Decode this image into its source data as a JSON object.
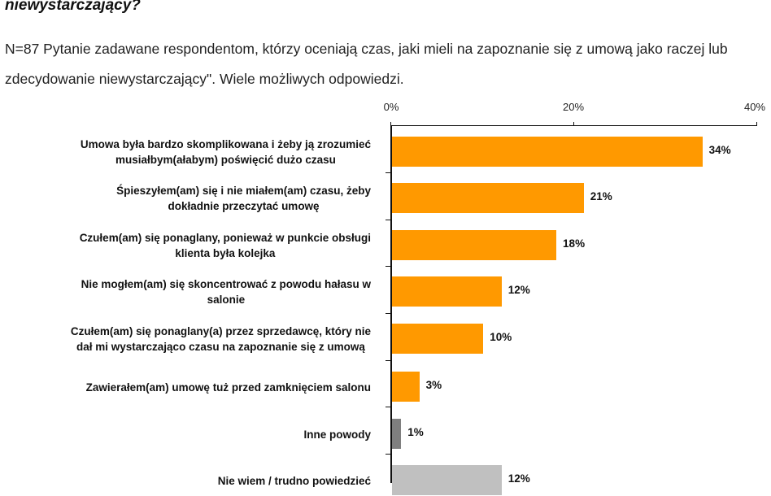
{
  "header": {
    "question_title_fragment": "niewystarczający?",
    "subtitle": "N=87 Pytanie zadawane respondentom, którzy oceniają czas, jaki mieli na zapoznanie się z umową jako raczej lub zdecydowanie niewystarczający\". Wiele możliwych odpowiedzi."
  },
  "colors": {
    "primary_bar": "#FF9900",
    "other_bar": "#7F7F7F",
    "dont_know_bar": "#C0C0C0",
    "axis": "#111111"
  },
  "axis": {
    "ticks": [
      "0%",
      "20%",
      "40%"
    ]
  },
  "chart_data": {
    "type": "bar",
    "orientation": "horizontal",
    "title": "niewystarczający?",
    "subtitle": "N=87 Pytanie zadawane respondentom, którzy oceniają czas, jaki mieli na zapoznanie się z umową jako raczej lub zdecydowanie niewystarczający\". Wiele możliwych odpowiedzi.",
    "xlabel": "",
    "ylabel": "",
    "xlim": [
      0,
      40
    ],
    "x_ticks": [
      "0%",
      "20%",
      "40%"
    ],
    "x_axis_position": "top",
    "grid": false,
    "legend": null,
    "categories": [
      "Umowa była bardzo skomplikowana i żeby ją zrozumieć musiałbym(ałabym) poświęcić dużo czasu",
      "Śpieszyłem(am) się i nie miałem(am) czasu, żeby dokładnie przeczytać umowę",
      "Czułem(am) się ponaglany, ponieważ w punkcie obsługi klienta była kolejka",
      "Nie mogłem(am) się skoncentrować z powodu hałasu w salonie",
      "Czułem(am) się ponaglany(a) przez sprzedawcę, który nie dał mi wystarczająco czasu na zapoznanie się z umową",
      "Zawierałem(am) umowę tuż przed zamknięciem salonu",
      "Inne powody",
      "Nie wiem / trudno powiedzieć"
    ],
    "values": [
      34,
      21,
      18,
      12,
      10,
      3,
      1,
      12
    ],
    "value_labels": [
      "34%",
      "21%",
      "18%",
      "12%",
      "10%",
      "3%",
      "1%",
      "12%"
    ],
    "bar_colors": [
      "#FF9900",
      "#FF9900",
      "#FF9900",
      "#FF9900",
      "#FF9900",
      "#FF9900",
      "#7F7F7F",
      "#C0C0C0"
    ]
  },
  "rows": [
    {
      "line1": "Umowa była bardzo skomplikowana i żeby ją zrozumieć",
      "line2": "musiałbym(ałabym) poświęcić dużo czasu",
      "label": "34%"
    },
    {
      "line1": "Śpieszyłem(am) się i nie miałem(am) czasu, żeby",
      "line2": "dokładnie przeczytać umowę",
      "label": "21%"
    },
    {
      "line1": "Czułem(am) się ponaglany, ponieważ w punkcie obsługi",
      "line2": "klienta była kolejka",
      "label": "18%"
    },
    {
      "line1": "Nie mogłem(am) się skoncentrować z powodu hałasu w",
      "line2": "salonie",
      "label": "12%"
    },
    {
      "line1": "Czułem(am) się ponaglany(a) przez sprzedawcę, który nie",
      "line2": "dał mi wystarczająco czasu na zapoznanie się z umową",
      "label": "10%"
    },
    {
      "line1": "Zawierałem(am) umowę tuż przed zamknięciem salonu",
      "line2": "",
      "label": "3%"
    },
    {
      "line1": "Inne powody",
      "line2": "",
      "label": "1%"
    },
    {
      "line1": "Nie wiem / trudno powiedzieć",
      "line2": "",
      "label": "12%"
    }
  ]
}
